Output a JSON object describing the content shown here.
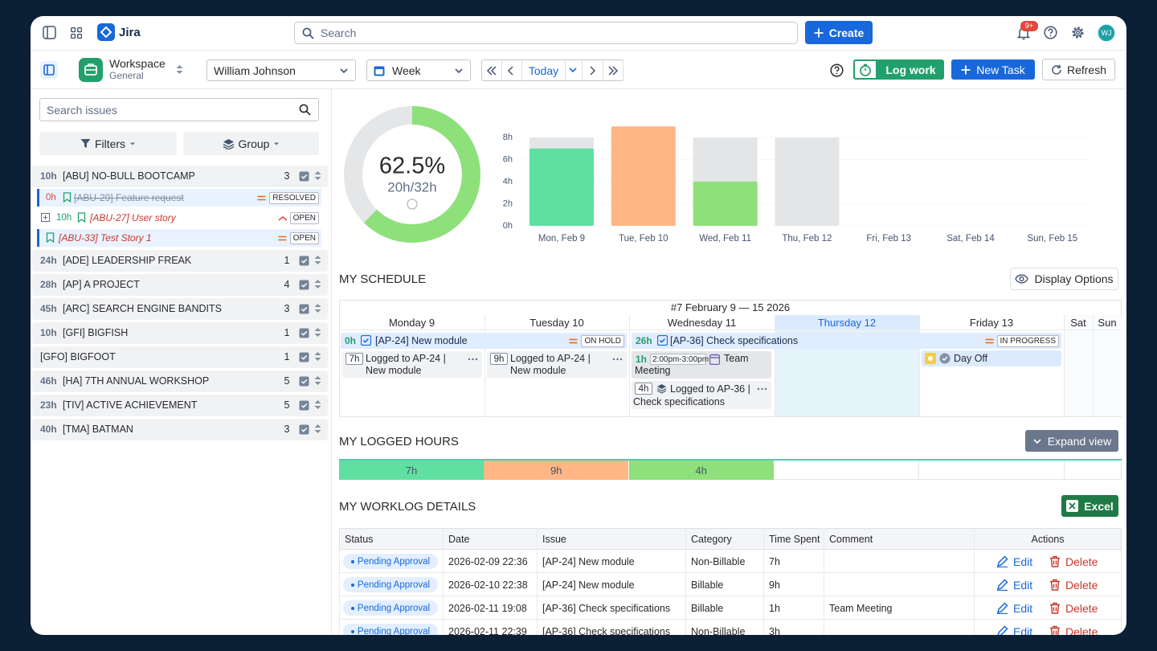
{
  "topbar": {
    "app_name": "Jira",
    "search_placeholder": "Search",
    "create": "Create",
    "notifications": "9+",
    "avatar": "WJ"
  },
  "toolbar": {
    "workspace": "Workspace",
    "workspace_sub": "General",
    "user": "William Johnson",
    "period": "Week",
    "today": "Today",
    "log_work": "Log work",
    "new_task": "New Task",
    "refresh": "Refresh"
  },
  "sidebar": {
    "search_placeholder": "Search issues",
    "filters": "Filters",
    "group": "Group",
    "projects": [
      {
        "hours": "10h",
        "name": "[ABU] NO-BULL BOOTCAMP",
        "count": 3,
        "issues": [
          {
            "hours": "0h",
            "title": "[ABU-29] Feature request",
            "status": "RESOLVED"
          },
          {
            "hours": "10h",
            "title": "[ABU-27] User story",
            "status": "OPEN"
          },
          {
            "title": "[ABU-33] Test Story 1",
            "status": "OPEN"
          }
        ]
      },
      {
        "hours": "24h",
        "name": "[ADE] LEADERSHIP FREAK",
        "count": 1
      },
      {
        "hours": "28h",
        "name": "[AP] A PROJECT",
        "count": 4
      },
      {
        "hours": "45h",
        "name": "[ARC] SEARCH ENGINE BANDITS",
        "count": 3
      },
      {
        "hours": "10h",
        "name": "[GFI] BIGFISH",
        "count": 1
      },
      {
        "name": "[GFO] BIGFOOT",
        "count": 1
      },
      {
        "hours": "46h",
        "name": "[HA] 7TH ANNUAL WORKSHOP",
        "count": 5
      },
      {
        "hours": "23h",
        "name": "[TIV] ACTIVE ACHIEVEMENT",
        "count": 5
      },
      {
        "hours": "40h",
        "name": "[TMA] BATMAN",
        "count": 3
      }
    ]
  },
  "summary": {
    "progress": {
      "value": 62.5,
      "label": "62.5%",
      "detail": "20h/32h",
      "color": "#8ee07b",
      "track_color": "#e5e6e8"
    },
    "daily_chart": {
      "categories": [
        "Mon, Feb 9",
        "Tue, Feb 10",
        "Wed, Feb 11",
        "Thu, Feb 12",
        "Fri, Feb 13",
        "Sat, Feb 14",
        "Sun, Feb 15"
      ],
      "capacity": [
        8,
        8,
        8,
        8,
        0,
        0,
        0
      ],
      "logged": [
        7,
        9,
        4,
        0,
        0,
        0,
        0
      ],
      "colors": [
        "#5fe0a0",
        "#ffb685",
        "#8ee07b",
        "#8ee07b",
        "#8ee07b",
        "#8ee07b",
        "#8ee07b"
      ],
      "capacity_color": "#e4e5e7",
      "ylim": [
        0,
        9
      ],
      "yticks": [
        {
          "value": 0,
          "label": "0h"
        },
        {
          "value": 2,
          "label": "2h"
        },
        {
          "value": 4,
          "label": "4h"
        },
        {
          "value": 6,
          "label": "6h"
        },
        {
          "value": 8,
          "label": "8h"
        }
      ]
    }
  },
  "schedule": {
    "title": "MY SCHEDULE",
    "display_options": "Display Options",
    "week": "#7 February 9 — 15 2026",
    "days": [
      "Monday 9",
      "Tuesday 10",
      "Wednesday 11",
      "Thursday 12",
      "Friday 13",
      "Sat",
      "Sun"
    ],
    "tasks": [
      {
        "hours": "0h",
        "title": "[AP-24] New module",
        "status": "ON HOLD"
      },
      {
        "hours": "26h",
        "title": "[AP-36] Check specifications",
        "status": "IN PROGRESS"
      }
    ],
    "entries": [
      {
        "hours": "7h",
        "text": "Logged to AP-24 | New module"
      },
      {
        "hours": "9h",
        "text": "Logged to AP-24 | New module"
      },
      {
        "hours": "1h",
        "time": "2:00pm-3:00pm",
        "text": "Team Meeting"
      },
      {
        "hours": "4h",
        "text": "Logged to AP-36 | Check specifications"
      },
      {
        "text": "Day Off"
      }
    ]
  },
  "logged_hours": {
    "title": "MY LOGGED HOURS",
    "expand": "Expand view",
    "days": [
      {
        "label": "7h",
        "color": "#5fe0a0"
      },
      {
        "label": "9h",
        "color": "#ffb685"
      },
      {
        "label": "4h",
        "color": "#8ee07b"
      }
    ]
  },
  "worklog": {
    "title": "MY WORKLOG DETAILS",
    "export": "Excel",
    "columns": [
      "Status",
      "Date",
      "Issue",
      "Category",
      "Time Spent",
      "Comment",
      "Actions"
    ],
    "rows": [
      {
        "status": "Pending Approval",
        "date": "2026-02-09 22:36",
        "issue": "[AP-24] New module",
        "category": "Non-Billable",
        "time_spent": "7h"
      },
      {
        "status": "Pending Approval",
        "date": "2026-02-10 22:38",
        "issue": "[AP-24] New module",
        "category": "Billable",
        "time_spent": "9h"
      },
      {
        "status": "Pending Approval",
        "date": "2026-02-11 19:08",
        "issue": "[AP-36] Check specifications",
        "category": "Billable",
        "time_spent": "1h",
        "comment": "Team Meeting"
      },
      {
        "status": "Pending Approval",
        "date": "2026-02-11 22:39",
        "issue": "[AP-36] Check specifications",
        "category": "Non-Billable",
        "time_spent": "3h"
      }
    ],
    "edit": "Edit",
    "delete": "Delete"
  }
}
